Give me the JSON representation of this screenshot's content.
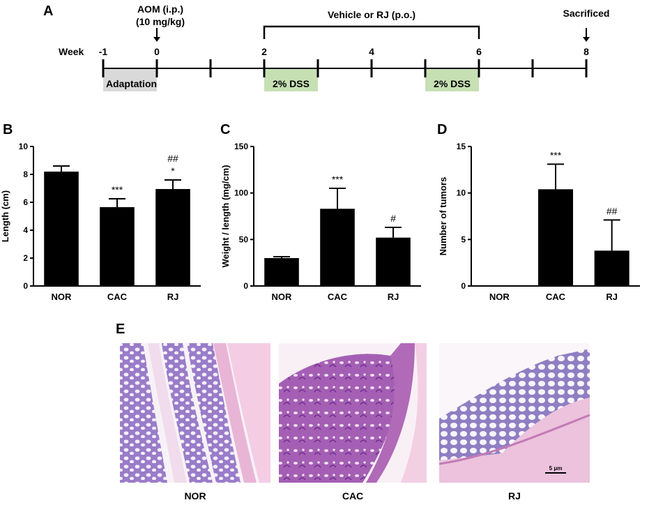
{
  "panels": {
    "A": "A",
    "B": "B",
    "C": "C",
    "D": "D",
    "E": "E"
  },
  "timeline": {
    "week_label": "Week",
    "week_ticks": [
      {
        "week": -1,
        "label": "-1"
      },
      {
        "week": 0,
        "label": "0"
      },
      {
        "week": 1,
        "label": ""
      },
      {
        "week": 2,
        "label": "2"
      },
      {
        "week": 3,
        "label": ""
      },
      {
        "week": 4,
        "label": "4"
      },
      {
        "week": 5,
        "label": ""
      },
      {
        "week": 6,
        "label": "6"
      },
      {
        "week": 7,
        "label": ""
      },
      {
        "week": 8,
        "label": "8"
      }
    ],
    "aom_line1": "AOM (i.p.)",
    "aom_line2": "(10 mg/kg)",
    "aom_week": 0,
    "treatment": "Vehicle or RJ (p.o.)",
    "treatment_start": 2,
    "treatment_end": 6,
    "sacrificed": "Sacrificed",
    "sacrificed_week": 8,
    "adaptation": {
      "label": "Adaptation",
      "start": -1,
      "end": 0,
      "color": "#d9d9d9"
    },
    "dss": [
      {
        "label": "2% DSS",
        "start": 2,
        "end": 3,
        "color": "#c6e0b4"
      },
      {
        "label": "2% DSS",
        "start": 5,
        "end": 6,
        "color": "#c6e0b4"
      }
    ]
  },
  "chart_data": [
    {
      "id": "B",
      "type": "bar",
      "categories": [
        "NOR",
        "CAC",
        "RJ"
      ],
      "values": [
        8.2,
        5.65,
        6.95
      ],
      "errors": [
        0.4,
        0.6,
        0.65
      ],
      "annotations": [
        [],
        [
          "***"
        ],
        [
          "##",
          "*"
        ]
      ],
      "ylabel": "Length (cm)",
      "ylim": [
        0,
        10
      ],
      "yticks": [
        0,
        2,
        4,
        6,
        8,
        10
      ],
      "ytick_labels": [
        "0",
        "2",
        "4",
        "6",
        "8",
        "10"
      ]
    },
    {
      "id": "C",
      "type": "bar",
      "categories": [
        "NOR",
        "CAC",
        "RJ"
      ],
      "values": [
        30,
        83,
        52
      ],
      "errors": [
        1.5,
        22,
        11
      ],
      "annotations": [
        [],
        [
          "***"
        ],
        [
          "#"
        ]
      ],
      "ylabel": "Weight / length (mg/cm)",
      "ylim": [
        0,
        150
      ],
      "yticks": [
        0,
        50,
        100,
        150
      ],
      "ytick_labels": [
        "0",
        "50",
        "100",
        "150"
      ]
    },
    {
      "id": "D",
      "type": "bar",
      "categories": [
        "NOR",
        "CAC",
        "RJ"
      ],
      "values": [
        0,
        10.4,
        3.8
      ],
      "errors": [
        0,
        2.7,
        3.3
      ],
      "annotations": [
        [],
        [
          "***"
        ],
        [
          "##"
        ]
      ],
      "ylabel": "Number of tumors",
      "ylim": [
        0,
        15
      ],
      "yticks": [
        0,
        5,
        10,
        15
      ],
      "ytick_labels": [
        "0",
        "5",
        "10",
        "15"
      ]
    }
  ],
  "histology": {
    "images": [
      {
        "label": "NOR"
      },
      {
        "label": "CAC"
      },
      {
        "label": "RJ"
      }
    ],
    "scale_bar": "5 μm"
  },
  "colors": {
    "bar": "#000000",
    "tissue_pink": "#e8a9d0",
    "tissue_purple": "#8a4fb0",
    "background_white": "#ffffff"
  }
}
